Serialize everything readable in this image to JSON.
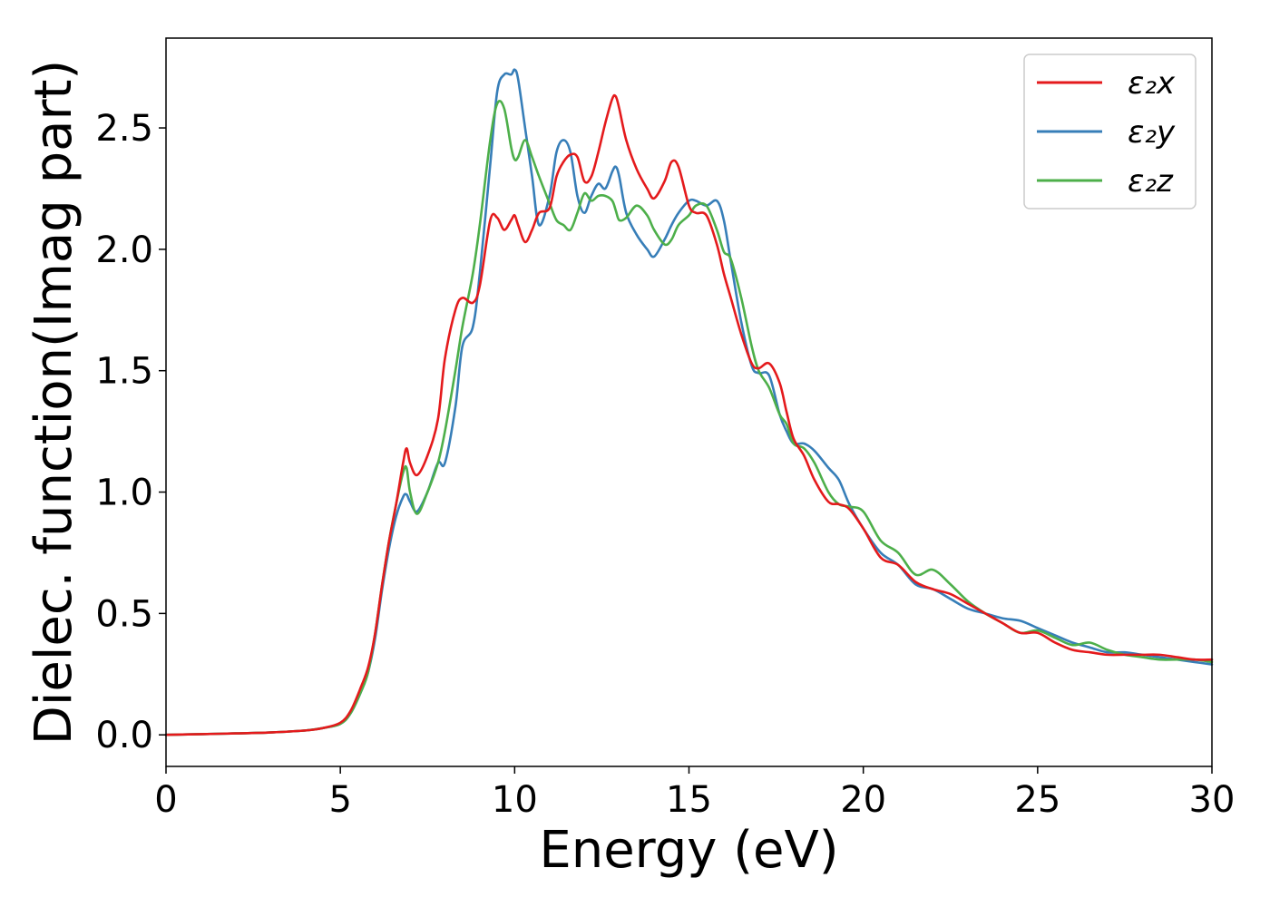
{
  "chart_data": {
    "type": "line",
    "title": "",
    "xlabel": "Energy (eV)",
    "ylabel": "Dielec. function(Imag part)",
    "xlim": [
      0,
      30
    ],
    "ylim": [
      -0.13,
      2.87
    ],
    "xticks": [
      0,
      5,
      10,
      15,
      20,
      25,
      30
    ],
    "xtick_labels": [
      "0",
      "5",
      "10",
      "15",
      "20",
      "25",
      "30"
    ],
    "yticks": [
      0.0,
      0.5,
      1.0,
      1.5,
      2.0,
      2.5
    ],
    "ytick_labels": [
      "0.0",
      "0.5",
      "1.0",
      "1.5",
      "2.0",
      "2.5"
    ],
    "grid": false,
    "legend_position": "top-right",
    "x": [
      0,
      1,
      2,
      3,
      4,
      4.5,
      5,
      5.3,
      5.6,
      5.8,
      6.0,
      6.2,
      6.4,
      6.6,
      6.8,
      6.9,
      7.0,
      7.2,
      7.5,
      7.8,
      8.0,
      8.3,
      8.5,
      8.8,
      9.0,
      9.3,
      9.5,
      9.7,
      9.9,
      10.0,
      10.1,
      10.3,
      10.5,
      10.7,
      11.0,
      11.2,
      11.4,
      11.6,
      11.8,
      12.0,
      12.2,
      12.4,
      12.6,
      12.8,
      12.9,
      13.0,
      13.2,
      13.5,
      13.8,
      14.0,
      14.3,
      14.5,
      14.7,
      15.0,
      15.2,
      15.5,
      15.8,
      16.0,
      16.2,
      16.5,
      16.8,
      17.0,
      17.3,
      17.6,
      17.8,
      18.0,
      18.3,
      18.6,
      19.0,
      19.3,
      19.6,
      20.0,
      20.5,
      21.0,
      21.5,
      22.0,
      22.5,
      23.0,
      23.5,
      24.0,
      24.5,
      25.0,
      25.5,
      26.0,
      26.5,
      27.0,
      27.5,
      28.0,
      28.5,
      29.0,
      29.5,
      30.0
    ],
    "series": [
      {
        "name": "ε₂x",
        "color": "#e41a1c",
        "values": [
          0.0,
          0.003,
          0.006,
          0.01,
          0.018,
          0.028,
          0.05,
          0.1,
          0.2,
          0.28,
          0.42,
          0.62,
          0.8,
          0.95,
          1.12,
          1.18,
          1.12,
          1.07,
          1.15,
          1.3,
          1.55,
          1.75,
          1.8,
          1.78,
          1.85,
          2.12,
          2.13,
          2.08,
          2.12,
          2.14,
          2.1,
          2.03,
          2.08,
          2.15,
          2.17,
          2.3,
          2.36,
          2.39,
          2.38,
          2.28,
          2.3,
          2.4,
          2.52,
          2.62,
          2.63,
          2.58,
          2.45,
          2.33,
          2.25,
          2.21,
          2.28,
          2.36,
          2.34,
          2.18,
          2.15,
          2.14,
          2.02,
          1.9,
          1.8,
          1.65,
          1.53,
          1.51,
          1.53,
          1.45,
          1.33,
          1.22,
          1.15,
          1.05,
          0.96,
          0.95,
          0.93,
          0.85,
          0.73,
          0.7,
          0.63,
          0.6,
          0.58,
          0.54,
          0.5,
          0.46,
          0.42,
          0.42,
          0.38,
          0.35,
          0.34,
          0.33,
          0.33,
          0.33,
          0.33,
          0.32,
          0.31,
          0.31
        ]
      },
      {
        "name": "ε₂y",
        "color": "#377eb8",
        "values": [
          0.0,
          0.003,
          0.006,
          0.01,
          0.018,
          0.028,
          0.045,
          0.09,
          0.18,
          0.26,
          0.4,
          0.6,
          0.77,
          0.9,
          0.98,
          0.99,
          0.96,
          0.92,
          1.0,
          1.12,
          1.12,
          1.35,
          1.6,
          1.68,
          1.9,
          2.35,
          2.65,
          2.72,
          2.72,
          2.74,
          2.7,
          2.5,
          2.3,
          2.1,
          2.22,
          2.4,
          2.45,
          2.4,
          2.22,
          2.15,
          2.22,
          2.27,
          2.25,
          2.32,
          2.34,
          2.3,
          2.15,
          2.06,
          2.0,
          1.97,
          2.04,
          2.1,
          2.15,
          2.2,
          2.2,
          2.18,
          2.2,
          2.12,
          1.95,
          1.7,
          1.52,
          1.49,
          1.48,
          1.32,
          1.25,
          1.2,
          1.2,
          1.17,
          1.1,
          1.05,
          0.95,
          0.85,
          0.75,
          0.7,
          0.62,
          0.6,
          0.56,
          0.52,
          0.5,
          0.48,
          0.47,
          0.44,
          0.41,
          0.38,
          0.36,
          0.34,
          0.34,
          0.33,
          0.32,
          0.31,
          0.3,
          0.29
        ]
      },
      {
        "name": "ε₂z",
        "color": "#4daf4a",
        "values": [
          0.0,
          0.003,
          0.006,
          0.01,
          0.018,
          0.028,
          0.045,
          0.09,
          0.18,
          0.26,
          0.42,
          0.62,
          0.8,
          0.95,
          1.08,
          1.1,
          1.0,
          0.91,
          1.0,
          1.12,
          1.25,
          1.5,
          1.68,
          1.9,
          2.1,
          2.45,
          2.6,
          2.58,
          2.42,
          2.37,
          2.38,
          2.45,
          2.38,
          2.3,
          2.19,
          2.12,
          2.1,
          2.08,
          2.15,
          2.23,
          2.2,
          2.22,
          2.22,
          2.2,
          2.16,
          2.12,
          2.13,
          2.18,
          2.14,
          2.08,
          2.02,
          2.04,
          2.1,
          2.14,
          2.18,
          2.18,
          2.08,
          1.99,
          1.96,
          1.8,
          1.6,
          1.5,
          1.43,
          1.32,
          1.28,
          1.2,
          1.18,
          1.12,
          1.0,
          0.95,
          0.94,
          0.92,
          0.8,
          0.75,
          0.66,
          0.68,
          0.62,
          0.55,
          0.5,
          0.46,
          0.42,
          0.43,
          0.4,
          0.37,
          0.38,
          0.35,
          0.33,
          0.32,
          0.31,
          0.31,
          0.31,
          0.3
        ]
      }
    ]
  }
}
